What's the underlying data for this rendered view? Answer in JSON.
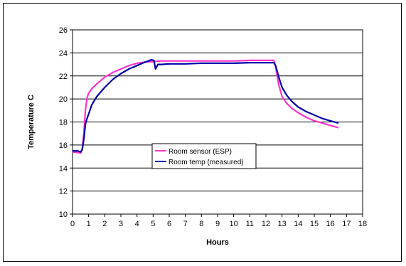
{
  "chart_data": {
    "type": "line",
    "title": "",
    "xlabel": "Hours",
    "ylabel": "Temperature C",
    "xlim": [
      0,
      18
    ],
    "ylim": [
      10,
      26
    ],
    "x_ticks": [
      0,
      1,
      2,
      3,
      4,
      5,
      6,
      7,
      8,
      9,
      10,
      11,
      12,
      13,
      14,
      15,
      16,
      17,
      18
    ],
    "y_ticks": [
      10,
      12,
      14,
      16,
      18,
      20,
      22,
      24,
      26
    ],
    "grid": "horizontal",
    "legend_position": "center",
    "series": [
      {
        "name": "Room sensor (ESP)",
        "color": "#ff33cc",
        "x": [
          0,
          0.3,
          0.5,
          0.6,
          0.7,
          0.8,
          0.9,
          1.0,
          1.2,
          1.5,
          2.0,
          2.5,
          3.0,
          3.5,
          4.0,
          4.5,
          5.0,
          5.5,
          6.0,
          7.0,
          8.0,
          9.0,
          10.0,
          11.0,
          12.0,
          12.5,
          12.6,
          12.8,
          13.0,
          13.3,
          13.6,
          14.0,
          14.5,
          15.0,
          15.5,
          16.0,
          16.5
        ],
        "y": [
          15.4,
          15.35,
          15.3,
          15.6,
          17.0,
          19.0,
          20.1,
          20.5,
          20.9,
          21.3,
          21.9,
          22.3,
          22.6,
          22.9,
          23.1,
          23.2,
          23.25,
          23.3,
          23.3,
          23.3,
          23.3,
          23.3,
          23.3,
          23.35,
          23.35,
          23.35,
          22.8,
          21.2,
          20.2,
          19.6,
          19.2,
          18.8,
          18.4,
          18.1,
          17.9,
          17.7,
          17.5
        ]
      },
      {
        "name": "Room temp (measured)",
        "color": "#0000aa",
        "x": [
          0,
          0.3,
          0.5,
          0.6,
          0.7,
          0.8,
          0.9,
          1.0,
          1.2,
          1.5,
          2.0,
          2.5,
          3.0,
          3.5,
          4.0,
          4.5,
          4.9,
          5.05,
          5.15,
          5.3,
          5.5,
          6.0,
          7.0,
          8.0,
          9.0,
          10.0,
          11.0,
          12.0,
          12.5,
          12.6,
          12.8,
          13.0,
          13.3,
          13.6,
          14.0,
          14.5,
          15.0,
          15.5,
          16.0,
          16.5
        ],
        "y": [
          15.5,
          15.5,
          15.4,
          15.6,
          16.5,
          17.8,
          18.3,
          18.7,
          19.5,
          20.2,
          21.0,
          21.7,
          22.2,
          22.6,
          22.9,
          23.2,
          23.4,
          23.35,
          22.6,
          23.0,
          23.0,
          23.05,
          23.05,
          23.1,
          23.1,
          23.1,
          23.15,
          23.15,
          23.15,
          22.9,
          21.9,
          21.0,
          20.3,
          19.8,
          19.3,
          18.9,
          18.6,
          18.3,
          18.1,
          17.9
        ]
      }
    ]
  }
}
